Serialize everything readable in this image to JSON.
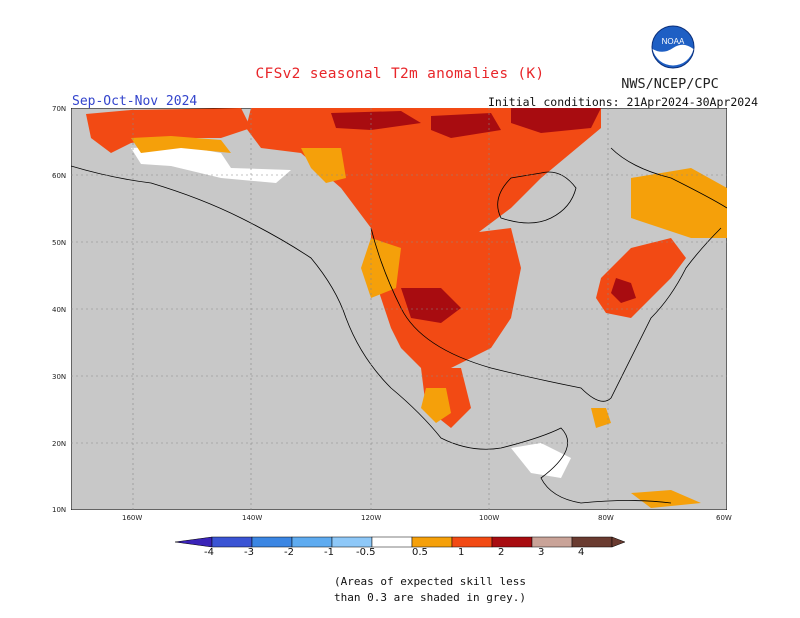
{
  "header": {
    "title": "CFSv2 seasonal T2m anomalies (K)",
    "agency": "NWS/NCEP/CPC",
    "season": "Sep-Oct-Nov 2024",
    "initial_conditions": "Initial conditions: 21Apr2024-30Apr2024",
    "logo_text": "NOAA"
  },
  "map": {
    "lat_labels": [
      "70N",
      "60N",
      "50N",
      "40N",
      "30N",
      "20N",
      "10N"
    ],
    "lon_labels": [
      "160W",
      "140W",
      "120W",
      "100W",
      "80W",
      "60W"
    ],
    "ocean_color": "#c8c8c8",
    "colors": {
      "c05": "#f5a00a",
      "c1": "#f24a14",
      "c2": "#a80c10",
      "low_skill": "#c8c8c8",
      "near_zero": "#ffffff"
    }
  },
  "legend": {
    "labels": [
      "-4",
      "-3",
      "-2",
      "-1",
      "-0.5",
      "0.5",
      "1",
      "2",
      "3",
      "4"
    ],
    "colors": [
      "#3a23b8",
      "#3a54d4",
      "#3b86e3",
      "#5eabf0",
      "#8ec8f8",
      "#ffffff",
      "#f5a00a",
      "#f24a14",
      "#a80c10",
      "#c9a398",
      "#6a3b30"
    ],
    "note_line1": "(Areas of expected skill less",
    "note_line2": "than 0.3 are shaded in grey.)"
  }
}
